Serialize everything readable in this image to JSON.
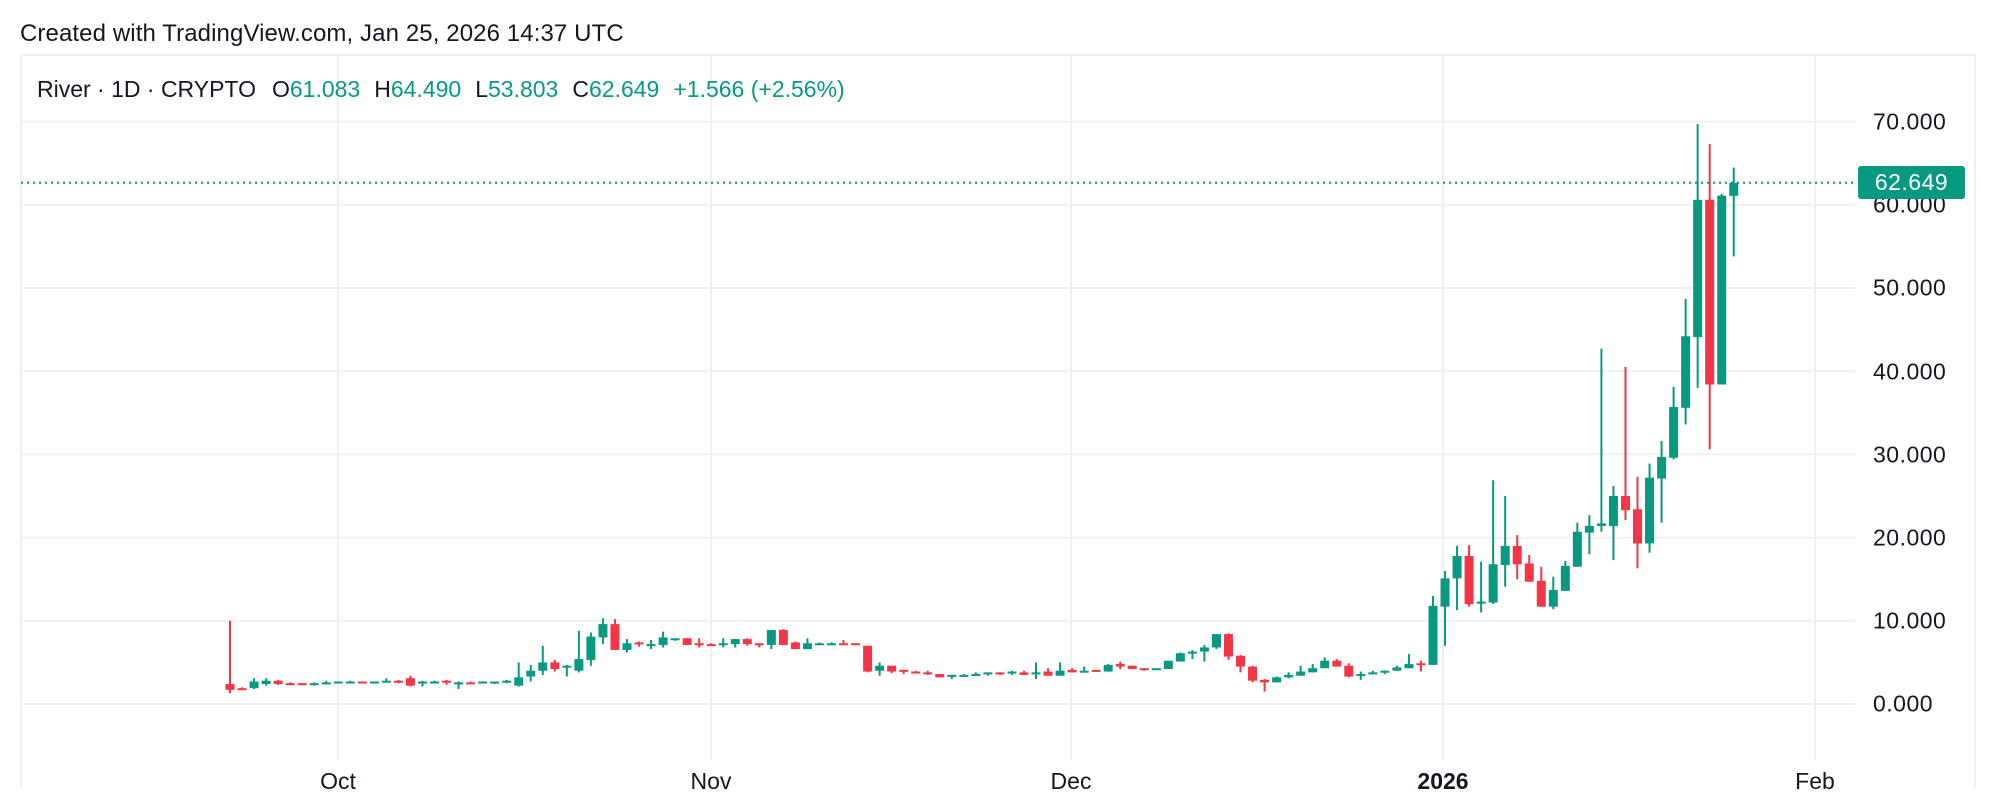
{
  "header": {
    "created_text": "Created with TradingView.com, Jan 25, 2026 14:37 UTC"
  },
  "legend": {
    "symbol": "River · 1D · CRYPTO",
    "open_label": "O",
    "open": "61.083",
    "high_label": "H",
    "high": "64.490",
    "low_label": "L",
    "low": "53.803",
    "close_label": "C",
    "close": "62.649",
    "change": "+1.566 (+2.56%)"
  },
  "colors": {
    "up": "#089981",
    "down": "#f23645",
    "grid": "#f0f0f0",
    "text": "#131722"
  },
  "price_axis": {
    "labels": [
      "70.000",
      "60.000",
      "50.000",
      "40.000",
      "30.000",
      "20.000",
      "10.000",
      "0.000"
    ],
    "last_price": "62.649"
  },
  "time_axis": {
    "labels": [
      {
        "text": "Oct",
        "bold": false
      },
      {
        "text": "Nov",
        "bold": false
      },
      {
        "text": "Dec",
        "bold": false
      },
      {
        "text": "2026",
        "bold": true
      },
      {
        "text": "Feb",
        "bold": false
      }
    ]
  },
  "chart_data": {
    "type": "candlestick",
    "title": "River · 1D · CRYPTO",
    "xlabel": "",
    "ylabel": "",
    "ylim": [
      0,
      70
    ],
    "yticks": [
      0,
      10,
      20,
      30,
      40,
      50,
      60,
      70
    ],
    "xticks": [
      "Oct",
      "Nov",
      "Dec",
      "2026",
      "Feb"
    ],
    "grid": true,
    "start_date": "Sep 22",
    "end_date": "Jan 25",
    "last_close": 62.649,
    "ohlc_fields": [
      "open",
      "high",
      "low",
      "close"
    ],
    "candles": [
      [
        2.4,
        10.0,
        1.3,
        1.7
      ],
      [
        1.9,
        2.0,
        1.7,
        1.8
      ],
      [
        1.9,
        3.1,
        1.8,
        2.7
      ],
      [
        2.4,
        3.1,
        2.2,
        2.8
      ],
      [
        2.8,
        2.9,
        2.3,
        2.4
      ],
      [
        2.5,
        2.6,
        2.4,
        2.4
      ],
      [
        2.5,
        2.5,
        2.4,
        2.4
      ],
      [
        2.4,
        2.6,
        2.2,
        2.5
      ],
      [
        2.5,
        2.8,
        2.4,
        2.6
      ],
      [
        2.6,
        2.7,
        2.5,
        2.7
      ],
      [
        2.7,
        2.8,
        2.6,
        2.7
      ],
      [
        2.7,
        2.7,
        2.5,
        2.5
      ],
      [
        2.6,
        2.7,
        2.5,
        2.7
      ],
      [
        2.7,
        3.1,
        2.6,
        2.8
      ],
      [
        2.8,
        2.9,
        2.5,
        2.6
      ],
      [
        3.1,
        3.4,
        2.1,
        2.2
      ],
      [
        2.5,
        2.8,
        2.1,
        2.7
      ],
      [
        2.6,
        2.8,
        2.5,
        2.7
      ],
      [
        2.8,
        2.9,
        2.3,
        2.6
      ],
      [
        2.5,
        2.7,
        1.8,
        2.6
      ],
      [
        2.6,
        2.7,
        2.5,
        2.5
      ],
      [
        2.5,
        2.7,
        2.5,
        2.7
      ],
      [
        2.6,
        2.7,
        2.4,
        2.7
      ],
      [
        2.6,
        2.9,
        2.5,
        2.8
      ],
      [
        2.2,
        5.0,
        2.1,
        3.2
      ],
      [
        3.3,
        4.7,
        2.7,
        4.0
      ],
      [
        4.0,
        7.0,
        3.5,
        5.0
      ],
      [
        5.0,
        5.3,
        3.9,
        4.2
      ],
      [
        4.4,
        4.7,
        3.3,
        4.6
      ],
      [
        4.0,
        8.8,
        3.8,
        5.4
      ],
      [
        5.3,
        8.6,
        4.6,
        8.1
      ],
      [
        8.0,
        10.3,
        7.2,
        9.6
      ],
      [
        9.6,
        10.2,
        6.5,
        6.5
      ],
      [
        6.5,
        7.8,
        6.2,
        7.3
      ],
      [
        7.4,
        7.5,
        6.9,
        7.2
      ],
      [
        7.1,
        7.7,
        6.6,
        7.2
      ],
      [
        7.1,
        8.7,
        6.8,
        8.0
      ],
      [
        7.8,
        7.9,
        7.6,
        7.9
      ],
      [
        7.9,
        7.9,
        7.1,
        7.1
      ],
      [
        7.3,
        7.9,
        6.8,
        7.2
      ],
      [
        7.2,
        7.3,
        7.0,
        7.1
      ],
      [
        7.1,
        7.9,
        6.8,
        7.3
      ],
      [
        7.2,
        7.8,
        6.8,
        7.8
      ],
      [
        7.8,
        7.9,
        7.0,
        7.2
      ],
      [
        7.3,
        7.3,
        6.8,
        7.2
      ],
      [
        7.1,
        8.9,
        6.6,
        8.9
      ],
      [
        8.9,
        9.0,
        7.1,
        7.1
      ],
      [
        7.4,
        7.5,
        6.6,
        6.6
      ],
      [
        6.6,
        7.9,
        6.6,
        7.3
      ],
      [
        7.2,
        7.4,
        7.1,
        7.3
      ],
      [
        7.2,
        7.4,
        7.1,
        7.3
      ],
      [
        7.3,
        7.7,
        7.1,
        7.2
      ],
      [
        7.3,
        7.3,
        7.1,
        7.2
      ],
      [
        7.0,
        7.0,
        3.8,
        3.9
      ],
      [
        4.0,
        5.0,
        3.4,
        4.6
      ],
      [
        4.6,
        4.6,
        3.7,
        3.9
      ],
      [
        4.1,
        4.1,
        3.6,
        3.9
      ],
      [
        3.9,
        4.0,
        3.7,
        3.8
      ],
      [
        3.8,
        4.0,
        3.5,
        3.7
      ],
      [
        3.6,
        3.6,
        3.2,
        3.2
      ],
      [
        3.3,
        3.4,
        3.0,
        3.5
      ],
      [
        3.3,
        3.6,
        3.3,
        3.5
      ],
      [
        3.5,
        3.8,
        3.4,
        3.6
      ],
      [
        3.6,
        3.8,
        3.4,
        3.8
      ],
      [
        3.8,
        3.8,
        3.5,
        3.6
      ],
      [
        3.7,
        4.0,
        3.5,
        3.9
      ],
      [
        3.8,
        4.0,
        3.5,
        3.5
      ],
      [
        3.6,
        5.0,
        3.0,
        3.8
      ],
      [
        3.9,
        4.3,
        3.4,
        3.4
      ],
      [
        3.4,
        5.0,
        3.4,
        4.0
      ],
      [
        4.1,
        4.3,
        3.8,
        3.8
      ],
      [
        3.8,
        4.5,
        3.8,
        4.0
      ],
      [
        4.1,
        4.1,
        3.9,
        3.9
      ],
      [
        3.9,
        4.8,
        3.9,
        4.7
      ],
      [
        4.8,
        5.1,
        4.2,
        4.5
      ],
      [
        4.6,
        4.6,
        4.2,
        4.2
      ],
      [
        4.3,
        4.3,
        4.0,
        4.1
      ],
      [
        4.2,
        4.3,
        4.2,
        4.3
      ],
      [
        4.2,
        5.2,
        4.2,
        5.2
      ],
      [
        5.1,
        6.2,
        5.1,
        6.1
      ],
      [
        6.1,
        6.5,
        5.4,
        6.3
      ],
      [
        6.3,
        7.1,
        5.1,
        6.8
      ],
      [
        6.8,
        8.4,
        6.6,
        8.4
      ],
      [
        8.4,
        8.5,
        5.3,
        5.7
      ],
      [
        5.8,
        5.9,
        3.8,
        4.5
      ],
      [
        4.5,
        4.6,
        2.6,
        2.8
      ],
      [
        2.9,
        3.0,
        1.5,
        2.6
      ],
      [
        2.6,
        3.3,
        2.6,
        3.2
      ],
      [
        3.2,
        3.8,
        3.1,
        3.5
      ],
      [
        3.4,
        4.6,
        3.4,
        3.9
      ],
      [
        3.8,
        4.8,
        3.8,
        4.3
      ],
      [
        4.3,
        5.6,
        4.3,
        5.2
      ],
      [
        5.2,
        5.4,
        4.5,
        4.5
      ],
      [
        4.6,
        4.9,
        3.2,
        3.3
      ],
      [
        3.4,
        3.9,
        2.9,
        3.6
      ],
      [
        3.6,
        4.0,
        3.6,
        3.8
      ],
      [
        3.8,
        4.0,
        3.6,
        4.0
      ],
      [
        4.0,
        4.6,
        4.0,
        4.4
      ],
      [
        4.3,
        6.0,
        4.3,
        4.8
      ],
      [
        4.9,
        5.2,
        3.9,
        4.8
      ],
      [
        4.7,
        13.0,
        4.7,
        11.8
      ],
      [
        11.7,
        16.0,
        7.0,
        15.1
      ],
      [
        15.1,
        19.0,
        11.3,
        17.8
      ],
      [
        17.8,
        19.1,
        11.7,
        12.0
      ],
      [
        12.2,
        17.1,
        11.0,
        12.3
      ],
      [
        12.2,
        26.9,
        12.0,
        16.8
      ],
      [
        16.7,
        25.0,
        14.1,
        19.0
      ],
      [
        19.0,
        20.3,
        15.0,
        16.8
      ],
      [
        16.9,
        17.9,
        14.7,
        14.7
      ],
      [
        14.8,
        16.5,
        11.7,
        11.7
      ],
      [
        11.7,
        15.3,
        11.4,
        13.7
      ],
      [
        13.6,
        17.2,
        13.6,
        16.6
      ],
      [
        16.5,
        21.8,
        16.5,
        20.7
      ],
      [
        20.6,
        22.7,
        18.0,
        21.4
      ],
      [
        21.4,
        42.7,
        20.7,
        21.7
      ],
      [
        21.4,
        26.2,
        17.3,
        25.0
      ],
      [
        25.0,
        40.5,
        22.1,
        23.3
      ],
      [
        23.4,
        27.3,
        16.3,
        19.3
      ],
      [
        19.3,
        28.9,
        18.2,
        27.2
      ],
      [
        27.1,
        31.6,
        21.8,
        29.7
      ],
      [
        29.6,
        38.1,
        29.4,
        35.7
      ],
      [
        35.6,
        48.7,
        33.6,
        44.2
      ],
      [
        44.1,
        69.7,
        38.0,
        60.6
      ],
      [
        60.6,
        67.3,
        30.6,
        38.4
      ],
      [
        38.4,
        61.3,
        38.4,
        61.1
      ],
      [
        61.083,
        64.49,
        53.803,
        62.649
      ]
    ]
  }
}
